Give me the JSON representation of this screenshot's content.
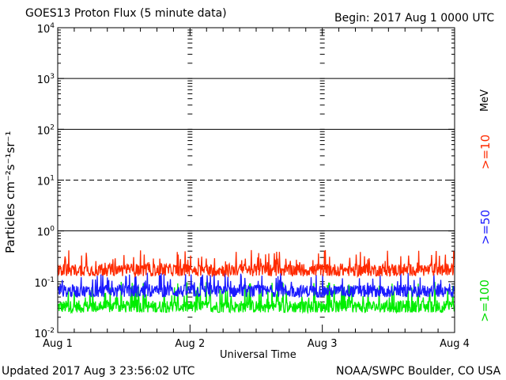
{
  "title": "GOES13 Proton Flux (5 minute data)",
  "begin_label": "Begin: 2017 Aug 1 0000 UTC",
  "footer_left": "Updated 2017 Aug  3 23:56:02 UTC",
  "footer_right": "NOAA/SWPC Boulder, CO USA",
  "legend": {
    "unit": "MeV",
    "ge10": ">=10",
    "ge50": ">=50",
    "ge100": ">=100"
  },
  "colors": {
    "ge10": "#ff2a00",
    "ge50": "#1a1aff",
    "ge100": "#00ee00",
    "axes": "#000000"
  },
  "chart_data": {
    "type": "line",
    "title": "GOES13 Proton Flux (5 minute data)",
    "xlabel": "Universal Time",
    "ylabel": "Particles cm⁻²s⁻¹sr⁻¹",
    "y_scale": "log",
    "ylim": [
      0.01,
      10000
    ],
    "y_ticks": [
      {
        "value": 0.01,
        "base": "10",
        "exp": "-2"
      },
      {
        "value": 0.1,
        "base": "10",
        "exp": "-1"
      },
      {
        "value": 1,
        "base": "10",
        "exp": "0"
      },
      {
        "value": 10,
        "base": "10",
        "exp": "1"
      },
      {
        "value": 100,
        "base": "10",
        "exp": "2"
      },
      {
        "value": 1000,
        "base": "10",
        "exp": "3"
      },
      {
        "value": 10000,
        "base": "10",
        "exp": "4"
      }
    ],
    "threshold_lines": [
      {
        "value": 1,
        "style": "solid"
      },
      {
        "value": 10,
        "style": "dashed"
      },
      {
        "value": 100,
        "style": "solid"
      },
      {
        "value": 1000,
        "style": "solid"
      }
    ],
    "xlim": [
      "2017-08-01",
      "2017-08-04"
    ],
    "x_ticks": [
      "Aug 1",
      "Aug 2",
      "Aug 3",
      "Aug 4"
    ],
    "series": [
      {
        "name": ">=10",
        "color": "#ff2a00",
        "baseline": 0.17,
        "min": 0.12,
        "max": 0.42
      },
      {
        "name": ">=50",
        "color": "#1a1aff",
        "baseline": 0.065,
        "min": 0.05,
        "max": 0.15
      },
      {
        "name": ">=100",
        "color": "#00ee00",
        "baseline": 0.032,
        "min": 0.025,
        "max": 0.1
      }
    ]
  }
}
